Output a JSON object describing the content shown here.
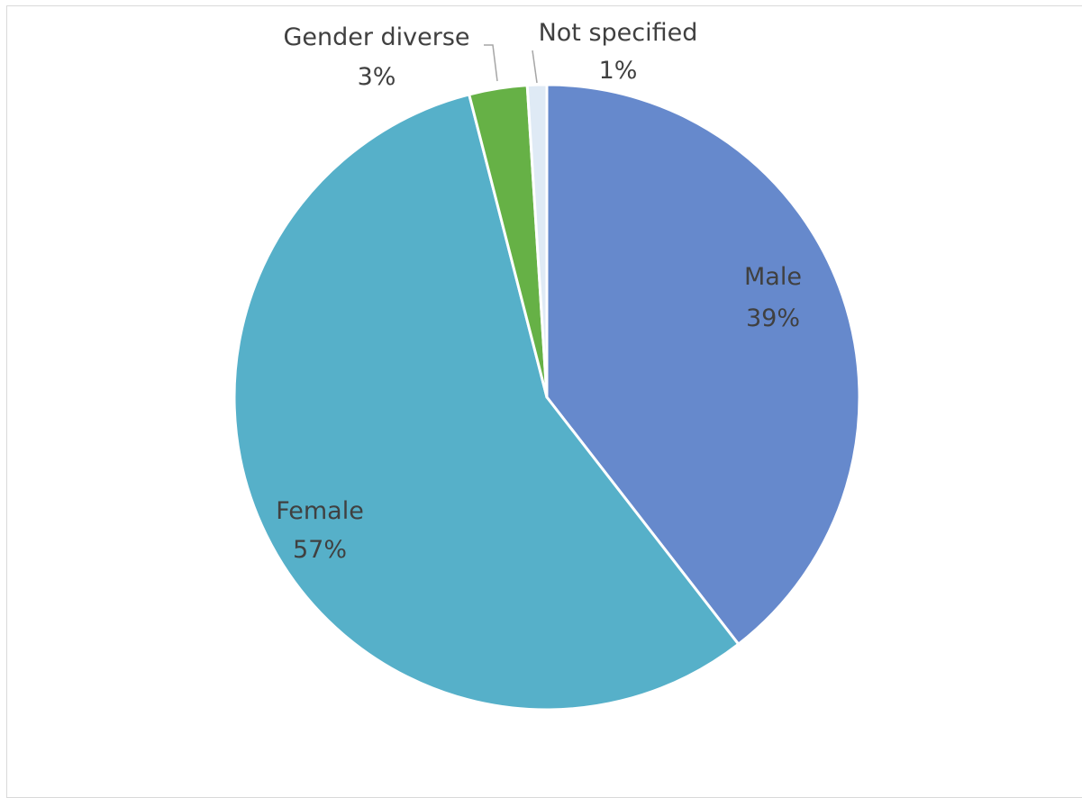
{
  "chart_data": {
    "type": "pie",
    "title": "",
    "start_angle_deg": 0,
    "direction": "clockwise",
    "slices": [
      {
        "label": "Male",
        "percent_label": "39%",
        "value": 39.5,
        "color": "#6689cc"
      },
      {
        "label": "Female",
        "percent_label": "57%",
        "value": 56.5,
        "color": "#56b0c9"
      },
      {
        "label": "Gender diverse",
        "percent_label": "3%",
        "value": 3.0,
        "color": "#66b146"
      },
      {
        "label": "Not specified",
        "percent_label": "1%",
        "value": 1.0,
        "color": "#dfeaf5"
      }
    ],
    "leader_line_color": "#a6a6a6",
    "slice_border_color": "#ffffff"
  }
}
